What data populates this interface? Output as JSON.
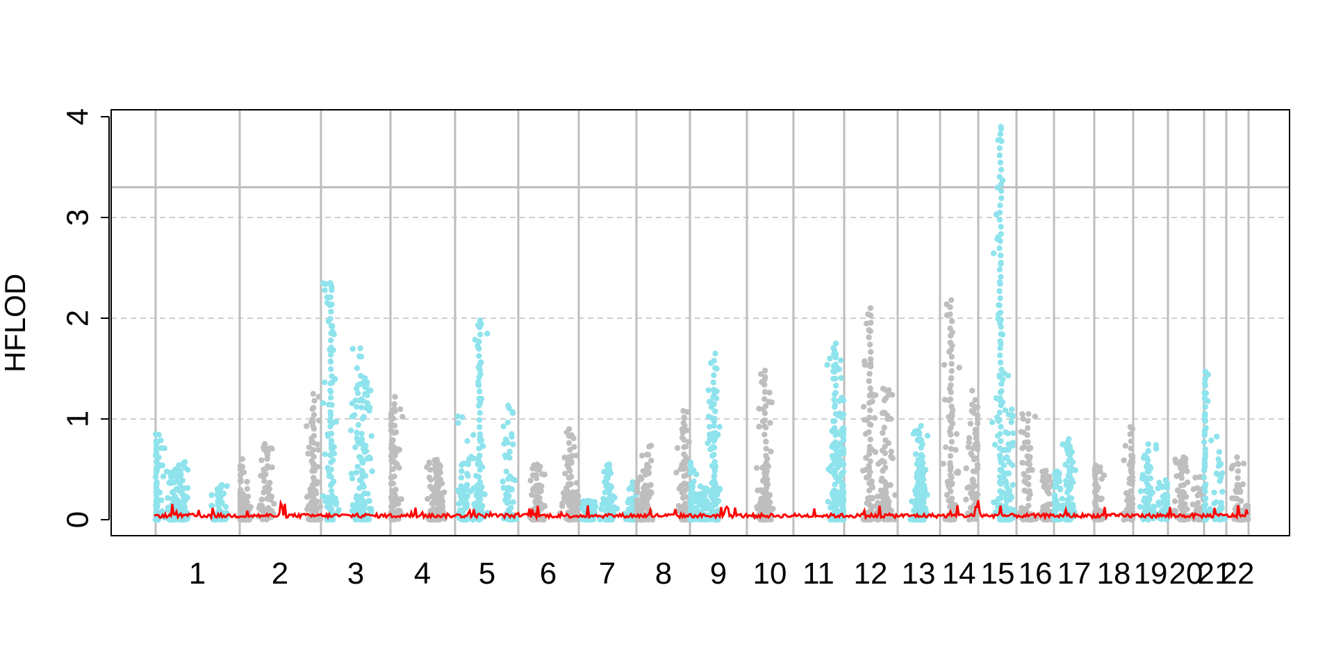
{
  "chart_data": {
    "type": "scatter",
    "ylabel": "HFLOD",
    "xlabel": "",
    "ylim": [
      0,
      4
    ],
    "yticks": [
      0,
      1,
      2,
      3,
      4
    ],
    "grid": "dashed horizontal at 1, 2, 3; solid vertical chromosome boundaries",
    "threshold_line": 3.3,
    "x_tick_labels": [
      "1",
      "2",
      "3",
      "4",
      "5",
      "6",
      "7",
      "8",
      "9",
      "10",
      "11",
      "12",
      "13",
      "14",
      "15",
      "16",
      "17",
      "18",
      "19",
      "20",
      "21",
      "22"
    ],
    "colors": {
      "odd_chromosomes": "#8ee3ec",
      "even_chromosomes": "#bebebe",
      "baseline_series": "#ff0000",
      "grid": "#bebebe",
      "axis": "#000000"
    },
    "chromosome_peaks": [
      {
        "chr": "1",
        "max_hflod": 0.85
      },
      {
        "chr": "2",
        "max_hflod": 1.25
      },
      {
        "chr": "3",
        "max_hflod": 2.35
      },
      {
        "chr": "4",
        "max_hflod": 1.22
      },
      {
        "chr": "5",
        "max_hflod": 1.98
      },
      {
        "chr": "6",
        "max_hflod": 0.9
      },
      {
        "chr": "7",
        "max_hflod": 0.55
      },
      {
        "chr": "8",
        "max_hflod": 1.08
      },
      {
        "chr": "9",
        "max_hflod": 1.65
      },
      {
        "chr": "10",
        "max_hflod": 1.48
      },
      {
        "chr": "11",
        "max_hflod": 1.75
      },
      {
        "chr": "12",
        "max_hflod": 2.1
      },
      {
        "chr": "13",
        "max_hflod": 0.93
      },
      {
        "chr": "14",
        "max_hflod": 2.18
      },
      {
        "chr": "15",
        "max_hflod": 3.9
      },
      {
        "chr": "16",
        "max_hflod": 1.05
      },
      {
        "chr": "17",
        "max_hflod": 0.8
      },
      {
        "chr": "18",
        "max_hflod": 0.92
      },
      {
        "chr": "19",
        "max_hflod": 0.75
      },
      {
        "chr": "20",
        "max_hflod": 0.62
      },
      {
        "chr": "21",
        "max_hflod": 1.47
      },
      {
        "chr": "22",
        "max_hflod": 0.62
      }
    ]
  }
}
